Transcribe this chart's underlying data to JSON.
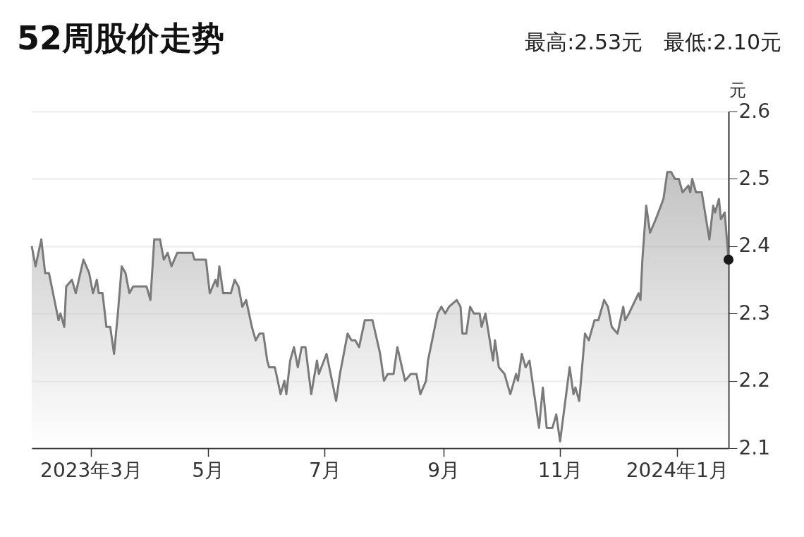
{
  "chart_data": {
    "type": "area",
    "title": "52周股价走势",
    "ylabel": "元",
    "annotations": [
      "最高:2.53元",
      "最低:2.10元"
    ],
    "xlim": [
      "2023-01-29",
      "2024-01-28"
    ],
    "xticks": [
      {
        "value": "2023-03-01",
        "label": "2023年3月"
      },
      {
        "value": "2023-05-01",
        "label": "5月"
      },
      {
        "value": "2023-07-01",
        "label": "7月"
      },
      {
        "value": "2023-09-01",
        "label": "9月"
      },
      {
        "value": "2023-11-01",
        "label": "11月"
      },
      {
        "value": "2024-01-01",
        "label": "2024年1月"
      }
    ],
    "ylim": [
      2.1,
      2.6
    ],
    "yticks": [
      2.1,
      2.2,
      2.3,
      2.4,
      2.5,
      2.6
    ],
    "grid": "y",
    "x": [
      "2023-01-29",
      "2023-01-31",
      "2023-02-03",
      "2023-02-05",
      "2023-02-07",
      "2023-02-12",
      "2023-02-13",
      "2023-02-15",
      "2023-02-16",
      "2023-02-19",
      "2023-02-21",
      "2023-02-25",
      "2023-02-28",
      "2023-03-02",
      "2023-03-04",
      "2023-03-05",
      "2023-03-07",
      "2023-03-09",
      "2023-03-11",
      "2023-03-13",
      "2023-03-15",
      "2023-03-17",
      "2023-03-19",
      "2023-03-21",
      "2023-03-23",
      "2023-03-30",
      "2023-04-01",
      "2023-04-03",
      "2023-04-06",
      "2023-04-08",
      "2023-04-10",
      "2023-04-12",
      "2023-04-15",
      "2023-04-23",
      "2023-04-24",
      "2023-04-30",
      "2023-05-02",
      "2023-05-05",
      "2023-05-06",
      "2023-05-07",
      "2023-05-09",
      "2023-05-13",
      "2023-05-15",
      "2023-05-17",
      "2023-05-19",
      "2023-05-21",
      "2023-05-24",
      "2023-05-26",
      "2023-05-28",
      "2023-05-30",
      "2023-06-01",
      "2023-06-02",
      "2023-06-05",
      "2023-06-08",
      "2023-06-10",
      "2023-06-11",
      "2023-06-13",
      "2023-06-15",
      "2023-06-17",
      "2023-06-19",
      "2023-06-21",
      "2023-06-24",
      "2023-06-27",
      "2023-06-28",
      "2023-07-02",
      "2023-07-07",
      "2023-07-09",
      "2023-07-13",
      "2023-07-15",
      "2023-07-17",
      "2023-07-19",
      "2023-07-22",
      "2023-07-26",
      "2023-07-30",
      "2023-08-01",
      "2023-08-03",
      "2023-08-06",
      "2023-08-08",
      "2023-08-12",
      "2023-08-15",
      "2023-08-18",
      "2023-08-20",
      "2023-08-23",
      "2023-08-24",
      "2023-08-29",
      "2023-08-31",
      "2023-09-02",
      "2023-09-04",
      "2023-09-08",
      "2023-09-10",
      "2023-09-11",
      "2023-09-13",
      "2023-09-15",
      "2023-09-17",
      "2023-09-20",
      "2023-09-21",
      "2023-09-23",
      "2023-09-27",
      "2023-09-28",
      "2023-09-30",
      "2023-10-03",
      "2023-10-06",
      "2023-10-09",
      "2023-10-10",
      "2023-10-12",
      "2023-10-14",
      "2023-10-16",
      "2023-10-21",
      "2023-10-23",
      "2023-10-25",
      "2023-10-28",
      "2023-10-30",
      "2023-11-01",
      "2023-11-06",
      "2023-11-08",
      "2023-11-09",
      "2023-11-11",
      "2023-11-14",
      "2023-11-16",
      "2023-11-19",
      "2023-11-21",
      "2023-11-24",
      "2023-11-26",
      "2023-11-28",
      "2023-12-01",
      "2023-12-04",
      "2023-12-05",
      "2023-12-07",
      "2023-12-12",
      "2023-12-13",
      "2023-12-14",
      "2023-12-16",
      "2023-12-18",
      "2023-12-21",
      "2023-12-25",
      "2023-12-27",
      "2023-12-29",
      "2023-12-31",
      "2024-01-02",
      "2024-01-04",
      "2024-01-07",
      "2024-01-08",
      "2024-01-09",
      "2024-01-11",
      "2024-01-14",
      "2024-01-18",
      "2024-01-20",
      "2024-01-21",
      "2024-01-23",
      "2024-01-24",
      "2024-01-26",
      "2024-01-28"
    ],
    "series": [
      {
        "color": "#7a7a7a",
        "marker": "none",
        "values": [
          2.4,
          2.37,
          2.41,
          2.36,
          2.36,
          2.29,
          2.3,
          2.28,
          2.34,
          2.35,
          2.33,
          2.38,
          2.36,
          2.33,
          2.35,
          2.33,
          2.33,
          2.28,
          2.28,
          2.24,
          2.3,
          2.37,
          2.36,
          2.33,
          2.34,
          2.34,
          2.32,
          2.41,
          2.41,
          2.38,
          2.39,
          2.37,
          2.39,
          2.39,
          2.38,
          2.38,
          2.33,
          2.35,
          2.34,
          2.37,
          2.33,
          2.33,
          2.35,
          2.34,
          2.31,
          2.32,
          2.28,
          2.26,
          2.27,
          2.27,
          2.23,
          2.22,
          2.22,
          2.18,
          2.2,
          2.18,
          2.23,
          2.25,
          2.22,
          2.25,
          2.25,
          2.18,
          2.23,
          2.21,
          2.24,
          2.17,
          2.21,
          2.27,
          2.26,
          2.26,
          2.25,
          2.29,
          2.29,
          2.24,
          2.2,
          2.21,
          2.21,
          2.25,
          2.2,
          2.21,
          2.21,
          2.18,
          2.2,
          2.23,
          2.3,
          2.31,
          2.3,
          2.31,
          2.32,
          2.31,
          2.27,
          2.27,
          2.31,
          2.3,
          2.3,
          2.28,
          2.3,
          2.23,
          2.26,
          2.22,
          2.21,
          2.18,
          2.21,
          2.2,
          2.24,
          2.22,
          2.23,
          2.13,
          2.19,
          2.13,
          2.13,
          2.15,
          2.11,
          2.22,
          2.18,
          2.19,
          2.17,
          2.27,
          2.26,
          2.29,
          2.29,
          2.32,
          2.31,
          2.28,
          2.27,
          2.31,
          2.29,
          2.3,
          2.33,
          2.32,
          2.38,
          2.46,
          2.42,
          2.44,
          2.47,
          2.51,
          2.51,
          2.5,
          2.5,
          2.48,
          2.49,
          2.48,
          2.5,
          2.48,
          2.48,
          2.41,
          2.46,
          2.45,
          2.47,
          2.44,
          2.45,
          2.38
        ]
      },
      {
        "type": "scatter",
        "color": "#1a1a1a",
        "marker": "circle",
        "x": [
          "2024-01-28"
        ],
        "values": [
          2.38
        ]
      }
    ]
  }
}
